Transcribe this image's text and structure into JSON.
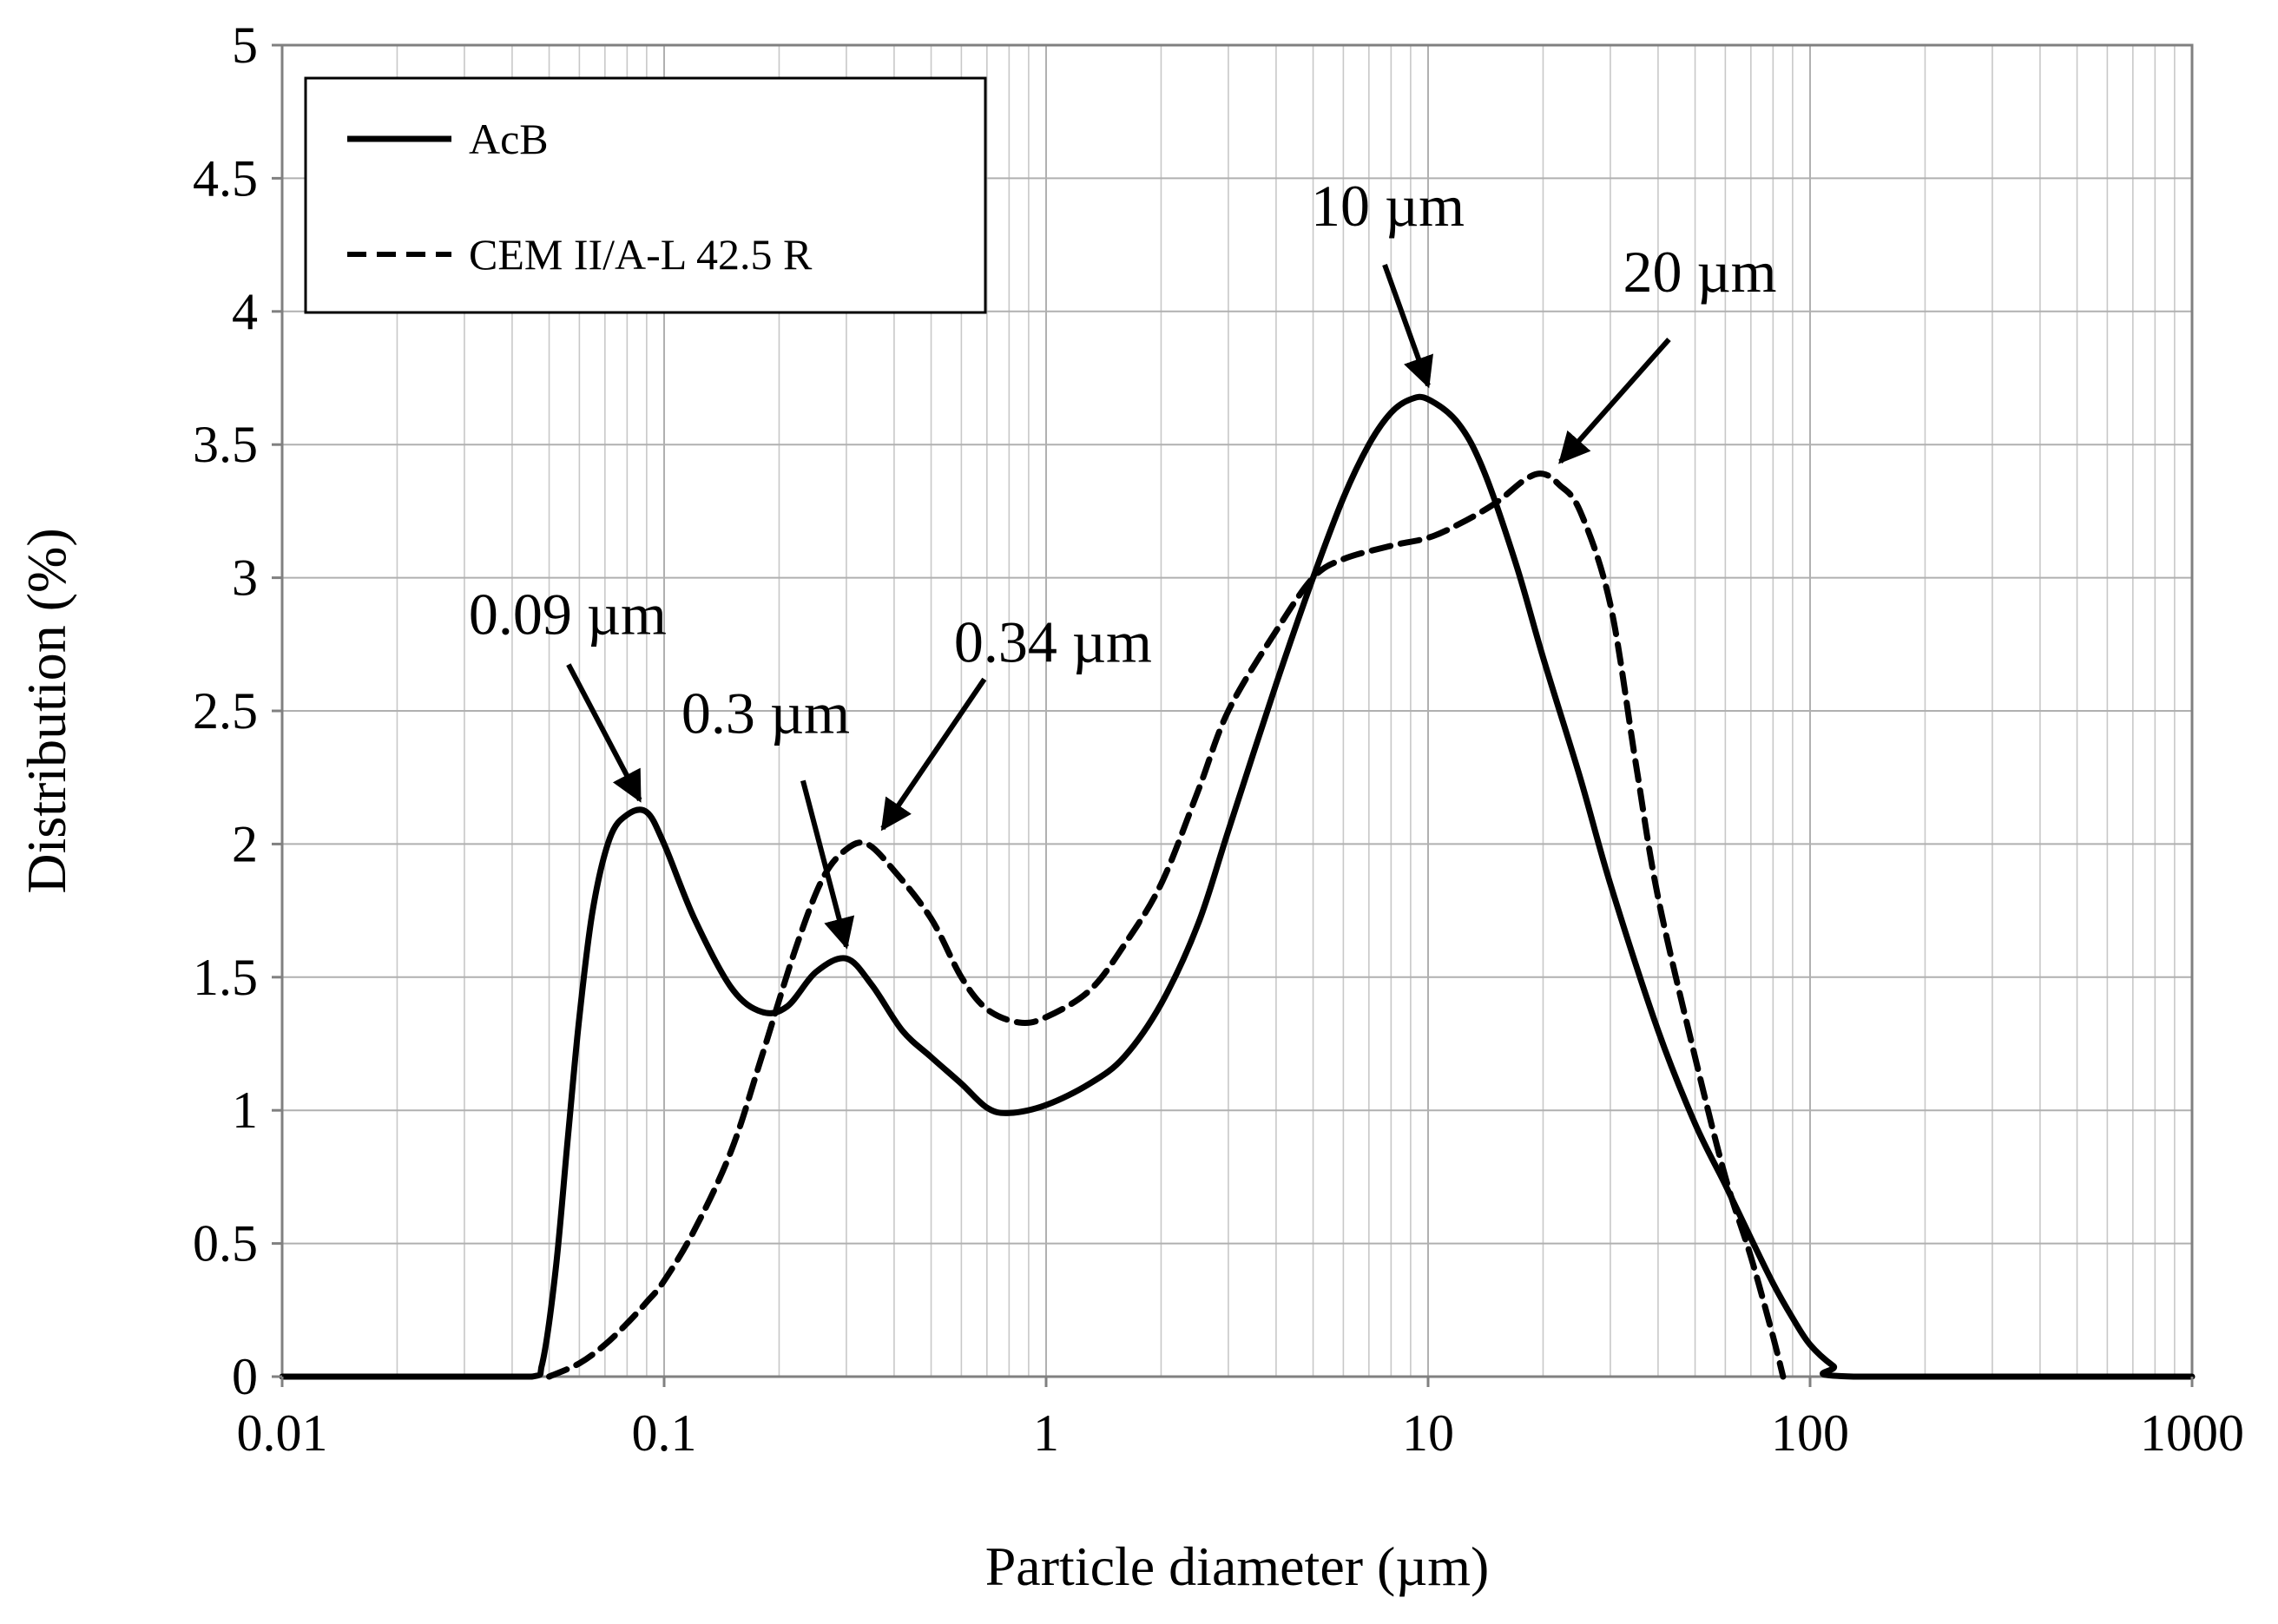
{
  "chart_data": {
    "type": "line",
    "title": "",
    "xlabel": "Particle diameter (µm)",
    "ylabel": "Distribution (%)",
    "xscale": "log",
    "xlim": [
      0.01,
      1000
    ],
    "ylim": [
      0,
      5
    ],
    "grid": true,
    "x_tick_labels": [
      "0.01",
      "0.1",
      "1",
      "10",
      "100",
      "1000"
    ],
    "y_tick_labels": [
      "0",
      "0.5",
      "1",
      "1.5",
      "2",
      "2.5",
      "3",
      "3.5",
      "4",
      "4.5",
      "5"
    ],
    "legend": {
      "placement": "top-left",
      "entries": [
        {
          "label": "AcB",
          "style": "solid"
        },
        {
          "label": "CEM II/A-L 42.5 R",
          "style": "dashed"
        }
      ]
    },
    "series": [
      {
        "name": "AcB",
        "style": "solid",
        "points": [
          [
            0.01,
            0
          ],
          [
            0.03,
            0
          ],
          [
            0.045,
            0
          ],
          [
            0.048,
            0.05
          ],
          [
            0.052,
            0.4
          ],
          [
            0.056,
            0.9
          ],
          [
            0.06,
            1.35
          ],
          [
            0.065,
            1.75
          ],
          [
            0.072,
            2.02
          ],
          [
            0.08,
            2.11
          ],
          [
            0.09,
            2.12
          ],
          [
            0.1,
            2.0
          ],
          [
            0.12,
            1.72
          ],
          [
            0.15,
            1.46
          ],
          [
            0.18,
            1.37
          ],
          [
            0.21,
            1.39
          ],
          [
            0.25,
            1.52
          ],
          [
            0.3,
            1.57
          ],
          [
            0.35,
            1.47
          ],
          [
            0.42,
            1.3
          ],
          [
            0.5,
            1.2
          ],
          [
            0.6,
            1.1
          ],
          [
            0.7,
            1.01
          ],
          [
            0.8,
            0.99
          ],
          [
            1.0,
            1.02
          ],
          [
            1.3,
            1.1
          ],
          [
            1.6,
            1.2
          ],
          [
            2.0,
            1.4
          ],
          [
            2.5,
            1.7
          ],
          [
            3.0,
            2.05
          ],
          [
            4.0,
            2.6
          ],
          [
            5.0,
            3.0
          ],
          [
            6.0,
            3.3
          ],
          [
            7.0,
            3.5
          ],
          [
            8.0,
            3.62
          ],
          [
            9.0,
            3.67
          ],
          [
            10.0,
            3.67
          ],
          [
            12.0,
            3.58
          ],
          [
            14.0,
            3.4
          ],
          [
            17.0,
            3.05
          ],
          [
            20.0,
            2.7
          ],
          [
            25.0,
            2.25
          ],
          [
            30.0,
            1.85
          ],
          [
            40.0,
            1.3
          ],
          [
            50.0,
            0.95
          ],
          [
            60.0,
            0.72
          ],
          [
            70.0,
            0.52
          ],
          [
            80.0,
            0.35
          ],
          [
            90.0,
            0.22
          ],
          [
            100.0,
            0.12
          ],
          [
            115.0,
            0.04
          ],
          [
            130.0,
            0.0
          ],
          [
            1000.0,
            0.0
          ]
        ]
      },
      {
        "name": "CEM II/A-L 42.5 R",
        "style": "dashed",
        "points": [
          [
            0.05,
            0
          ],
          [
            0.06,
            0.05
          ],
          [
            0.07,
            0.12
          ],
          [
            0.08,
            0.2
          ],
          [
            0.09,
            0.28
          ],
          [
            0.1,
            0.36
          ],
          [
            0.12,
            0.55
          ],
          [
            0.15,
            0.85
          ],
          [
            0.18,
            1.2
          ],
          [
            0.22,
            1.6
          ],
          [
            0.26,
            1.87
          ],
          [
            0.3,
            1.98
          ],
          [
            0.34,
            2.0
          ],
          [
            0.4,
            1.9
          ],
          [
            0.5,
            1.72
          ],
          [
            0.6,
            1.5
          ],
          [
            0.7,
            1.38
          ],
          [
            0.85,
            1.33
          ],
          [
            1.0,
            1.35
          ],
          [
            1.3,
            1.45
          ],
          [
            1.6,
            1.62
          ],
          [
            2.0,
            1.85
          ],
          [
            2.5,
            2.2
          ],
          [
            3.0,
            2.5
          ],
          [
            4.0,
            2.8
          ],
          [
            5.0,
            3.0
          ],
          [
            6.0,
            3.07
          ],
          [
            8.0,
            3.12
          ],
          [
            10.0,
            3.15
          ],
          [
            12.0,
            3.2
          ],
          [
            15.0,
            3.28
          ],
          [
            18.0,
            3.37
          ],
          [
            20.0,
            3.39
          ],
          [
            22.0,
            3.35
          ],
          [
            25.0,
            3.25
          ],
          [
            30.0,
            2.9
          ],
          [
            35.0,
            2.3
          ],
          [
            40.0,
            1.8
          ],
          [
            50.0,
            1.2
          ],
          [
            60.0,
            0.75
          ],
          [
            70.0,
            0.45
          ],
          [
            80.0,
            0.15
          ],
          [
            85.0,
            0.0
          ]
        ]
      }
    ],
    "annotations": [
      {
        "text": "0.09 µm",
        "series": "AcB",
        "x": 0.09,
        "y": 2.12
      },
      {
        "text": "0.3 µm",
        "series": "AcB",
        "x": 0.3,
        "y": 1.57
      },
      {
        "text": "0.34 µm",
        "series": "CEM II/A-L 42.5 R",
        "x": 0.34,
        "y": 2.0
      },
      {
        "text": "10 µm",
        "series": "AcB",
        "x": 10,
        "y": 3.67
      },
      {
        "text": "20 µm",
        "series": "CEM II/A-L 42.5 R",
        "x": 20,
        "y": 3.39
      }
    ]
  }
}
